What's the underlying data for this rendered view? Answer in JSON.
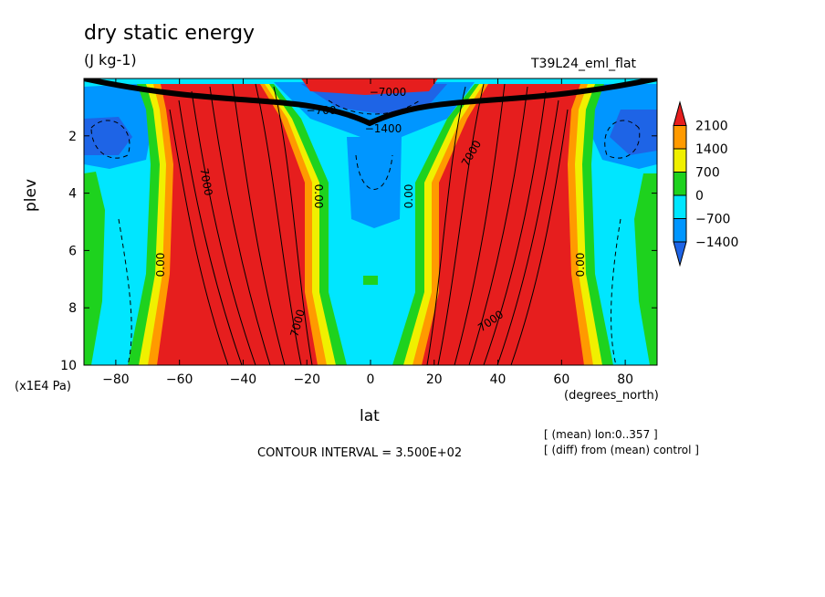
{
  "chart_data": {
    "type": "heatmap",
    "title": "dry static energy",
    "units": "(J kg-1)",
    "run_label": "T39L24_eml_flat",
    "xlabel": "lat",
    "x_units": "(degrees_north)",
    "ylabel": "plev",
    "y_units": "(x1E4 Pa)",
    "xlim": [
      -90,
      90
    ],
    "ylim": [
      10,
      0
    ],
    "x_ticks": [
      -80,
      -60,
      -40,
      -20,
      0,
      20,
      40,
      60,
      80
    ],
    "y_ticks": [
      2,
      4,
      6,
      8,
      10
    ],
    "colorbar": {
      "levels": [
        -1400,
        -700,
        0,
        700,
        1400,
        2100
      ],
      "labels": [
        "2100",
        "1400",
        "700",
        "0",
        "−700",
        "−1400"
      ],
      "colors": [
        "#e61e1e",
        "#ff9a00",
        "#f0f000",
        "#1ed21e",
        "#00e6ff",
        "#0096ff",
        "#1e64e6"
      ]
    },
    "contour_labels": [
      "7000",
      "7000",
      "7000",
      "7000",
      "0.00",
      "0.00",
      "0.00",
      "0.00",
      "−1400",
      "−700",
      "−7000"
    ],
    "contour_interval": "CONTOUR INTERVAL = 3.500E+02",
    "notes": [
      "[ (mean) lon:0..357 ]",
      "[ (diff) from (mean) control ]"
    ],
    "structure_description_only_in_render": true
  }
}
